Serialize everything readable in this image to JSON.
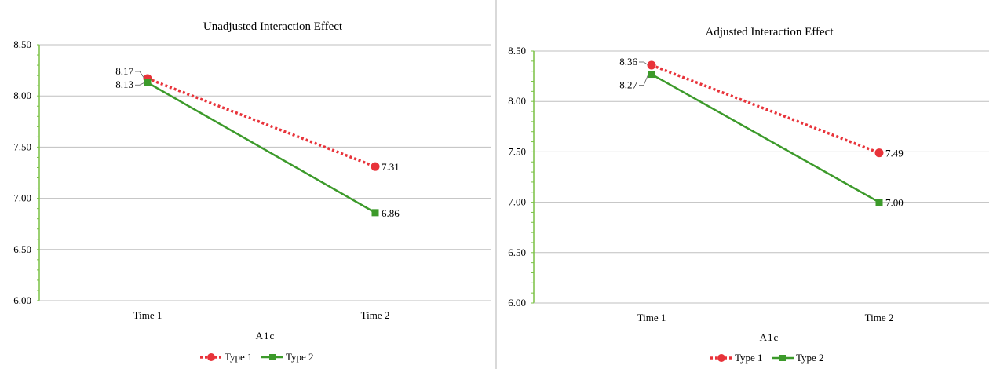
{
  "chart_data": [
    {
      "type": "line",
      "title": "Unadjusted Interaction Effect",
      "xlabel": "A1c",
      "ylabel": "",
      "categories": [
        "Time 1",
        "Time 2"
      ],
      "ylim": [
        6.0,
        8.5
      ],
      "yticks": [
        "6.00",
        "6.50",
        "7.00",
        "7.50",
        "8.00",
        "8.50"
      ],
      "grid": true,
      "legend_position": "bottom",
      "series": [
        {
          "name": "Type 1",
          "values": [
            8.17,
            7.31
          ],
          "labels": [
            "8.17",
            "7.31"
          ],
          "color": "#e8333a",
          "style": "dotted",
          "marker": "circle"
        },
        {
          "name": "Type 2",
          "values": [
            8.13,
            6.86
          ],
          "labels": [
            "8.13",
            "6.86"
          ],
          "color": "#3c9a2a",
          "style": "solid",
          "marker": "square"
        }
      ]
    },
    {
      "type": "line",
      "title": "Adjusted Interaction Effect",
      "xlabel": "A1c",
      "ylabel": "",
      "categories": [
        "Time 1",
        "Time 2"
      ],
      "ylim": [
        6.0,
        8.5
      ],
      "yticks": [
        "6.00",
        "6.50",
        "7.00",
        "7.50",
        "8.00",
        "8.50"
      ],
      "grid": true,
      "legend_position": "bottom",
      "series": [
        {
          "name": "Type 1",
          "values": [
            8.36,
            7.49
          ],
          "labels": [
            "8.36",
            "7.49"
          ],
          "color": "#e8333a",
          "style": "dotted",
          "marker": "circle"
        },
        {
          "name": "Type 2",
          "values": [
            8.27,
            7.0
          ],
          "labels": [
            "8.27",
            "7.00"
          ],
          "color": "#3c9a2a",
          "style": "solid",
          "marker": "square"
        }
      ]
    }
  ]
}
